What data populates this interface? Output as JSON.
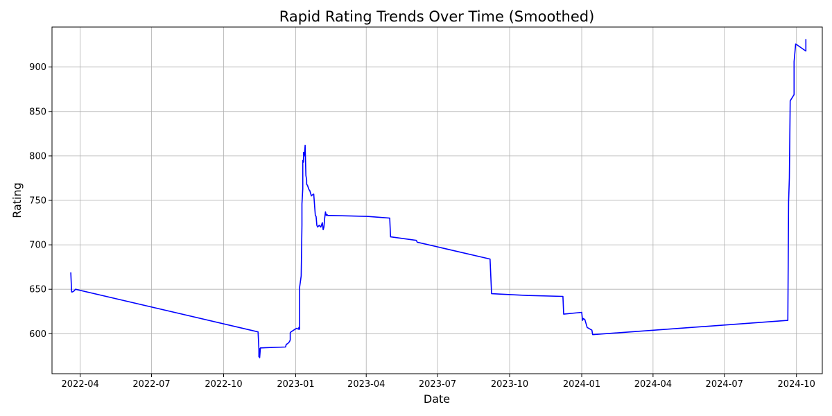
{
  "chart_data": {
    "type": "line",
    "title": "Rapid Rating Trends Over Time (Smoothed)",
    "xlabel": "Date",
    "ylabel": "Rating",
    "x_axis_type": "date",
    "xlim": [
      "2022-02-24",
      "2024-11-03"
    ],
    "ylim": [
      555,
      945
    ],
    "grid": true,
    "line_color": "#0000ff",
    "x_ticks": [
      "2022-04",
      "2022-07",
      "2022-10",
      "2023-01",
      "2023-04",
      "2023-07",
      "2023-10",
      "2024-01",
      "2024-04",
      "2024-07",
      "2024-10"
    ],
    "y_ticks": [
      600,
      650,
      700,
      750,
      800,
      850,
      900
    ],
    "series": [
      {
        "x": [
          "2022-03-20",
          "2022-03-21",
          "2022-03-22",
          "2022-03-24",
          "2022-03-26",
          "2022-11-14",
          "2022-11-15",
          "2022-11-15",
          "2022-11-16",
          "2022-11-16",
          "2022-11-17",
          "2022-12-19",
          "2022-12-20",
          "2022-12-22",
          "2022-12-24",
          "2022-12-25",
          "2022-12-25",
          "2022-12-26",
          "2023-01-02",
          "2023-01-05",
          "2023-01-05",
          "2023-01-06",
          "2023-01-06",
          "2023-01-08",
          "2023-01-09",
          "2023-01-09",
          "2023-01-09",
          "2023-01-10",
          "2023-01-10",
          "2023-01-11",
          "2023-01-11",
          "2023-01-12",
          "2023-01-13",
          "2023-01-14",
          "2023-01-15",
          "2023-01-15",
          "2023-01-16",
          "2023-01-18",
          "2023-01-19",
          "2023-01-21",
          "2023-01-22",
          "2023-01-24",
          "2023-01-26",
          "2023-01-27",
          "2023-01-28",
          "2023-01-29",
          "2023-01-31",
          "2023-02-02",
          "2023-02-04",
          "2023-02-05",
          "2023-02-06",
          "2023-02-07",
          "2023-02-08",
          "2023-02-09",
          "2023-02-10",
          "2023-02-11",
          "2023-02-12",
          "2023-02-15",
          "2023-04-01",
          "2023-04-02",
          "2023-05-01",
          "2023-05-02",
          "2023-06-04",
          "2023-06-05",
          "2023-09-06",
          "2023-09-08",
          "2023-10-24",
          "2023-12-08",
          "2023-12-09",
          "2024-01-01",
          "2024-01-02",
          "2024-01-03",
          "2024-01-05",
          "2024-01-08",
          "2024-01-14",
          "2024-01-15",
          "2024-01-16",
          "2024-09-20",
          "2024-09-21",
          "2024-09-22",
          "2024-09-23",
          "2024-09-28",
          "2024-09-28",
          "2024-09-30",
          "2024-10-13",
          "2024-10-13",
          "2024-10-13"
        ],
        "y": [
          669,
          647,
          647,
          648,
          650,
          602,
          583,
          574,
          583,
          573,
          584,
          585,
          588,
          589,
          591,
          593,
          601,
          602,
          606,
          605,
          607,
          605,
          652,
          665,
          722,
          733,
          746,
          763,
          795,
          793,
          804,
          800,
          812,
          778,
          773,
          768,
          767,
          762,
          761,
          755,
          756,
          757,
          733,
          732,
          722,
          720,
          722,
          720,
          725,
          717,
          720,
          730,
          737,
          733,
          734,
          733,
          733,
          733,
          732,
          732,
          730,
          709,
          705,
          703,
          684,
          645,
          643,
          642,
          622,
          624,
          615,
          617,
          616,
          607,
          604,
          599,
          599,
          615,
          749,
          775,
          862,
          869,
          906,
          926,
          918,
          931,
          926
        ]
      }
    ]
  }
}
